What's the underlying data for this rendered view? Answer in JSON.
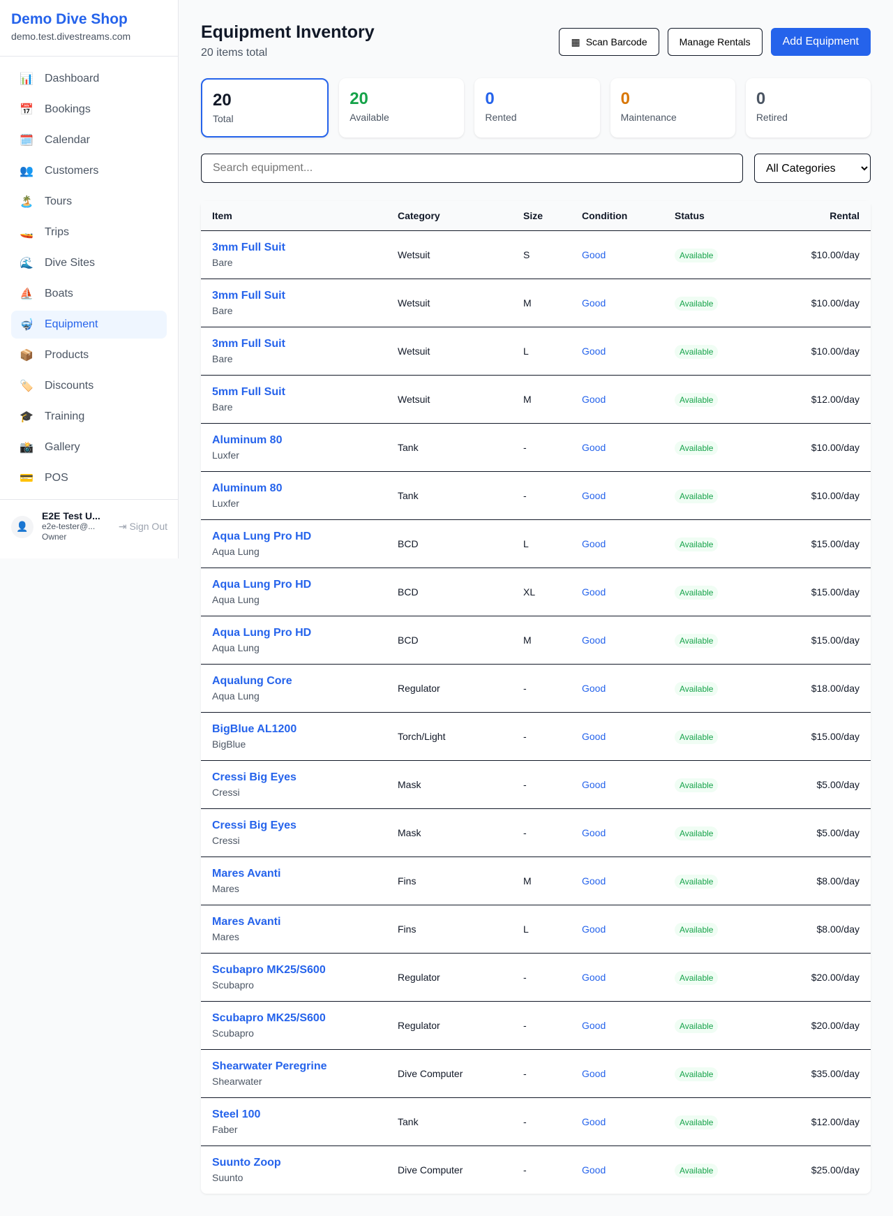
{
  "sidebar": {
    "shop_name": "Demo Dive Shop",
    "domain": "demo.test.divestreams.com",
    "items": [
      {
        "icon": "📊",
        "label": "Dashboard"
      },
      {
        "icon": "📅",
        "label": "Bookings"
      },
      {
        "icon": "🗓️",
        "label": "Calendar"
      },
      {
        "icon": "👥",
        "label": "Customers"
      },
      {
        "icon": "🏝️",
        "label": "Tours"
      },
      {
        "icon": "🚤",
        "label": "Trips"
      },
      {
        "icon": "🌊",
        "label": "Dive Sites"
      },
      {
        "icon": "⛵",
        "label": "Boats"
      },
      {
        "icon": "🤿",
        "label": "Equipment",
        "active": true
      },
      {
        "icon": "📦",
        "label": "Products"
      },
      {
        "icon": "🏷️",
        "label": "Discounts"
      },
      {
        "icon": "🎓",
        "label": "Training"
      },
      {
        "icon": "📸",
        "label": "Gallery"
      },
      {
        "icon": "💳",
        "label": "POS"
      }
    ],
    "user": {
      "name": "E2E Test U...",
      "email": "e2e-tester@...",
      "role": "Owner",
      "sign_out": "Sign Out"
    }
  },
  "header": {
    "title": "Equipment Inventory",
    "subtitle": "20 items total",
    "scan_barcode": "Scan Barcode",
    "manage_rentals": "Manage Rentals",
    "add_equipment": "Add Equipment"
  },
  "stats": [
    {
      "value": "20",
      "label": "Total",
      "color": "#111827"
    },
    {
      "value": "20",
      "label": "Available",
      "color": "#16a34a"
    },
    {
      "value": "0",
      "label": "Rented",
      "color": "#2563eb"
    },
    {
      "value": "0",
      "label": "Maintenance",
      "color": "#d97706"
    },
    {
      "value": "0",
      "label": "Retired",
      "color": "#4b5563"
    }
  ],
  "filters": {
    "search_placeholder": "Search equipment...",
    "category_selected": "All Categories"
  },
  "table": {
    "headers": [
      "Item",
      "Category",
      "Size",
      "Condition",
      "Status",
      "Rental"
    ],
    "rows": [
      [
        "3mm Full Suit",
        "Bare",
        "Wetsuit",
        "S",
        "Good",
        "Available",
        "$10.00/day"
      ],
      [
        "3mm Full Suit",
        "Bare",
        "Wetsuit",
        "M",
        "Good",
        "Available",
        "$10.00/day"
      ],
      [
        "3mm Full Suit",
        "Bare",
        "Wetsuit",
        "L",
        "Good",
        "Available",
        "$10.00/day"
      ],
      [
        "5mm Full Suit",
        "Bare",
        "Wetsuit",
        "M",
        "Good",
        "Available",
        "$12.00/day"
      ],
      [
        "Aluminum 80",
        "Luxfer",
        "Tank",
        "-",
        "Good",
        "Available",
        "$10.00/day"
      ],
      [
        "Aluminum 80",
        "Luxfer",
        "Tank",
        "-",
        "Good",
        "Available",
        "$10.00/day"
      ],
      [
        "Aqua Lung Pro HD",
        "Aqua Lung",
        "BCD",
        "L",
        "Good",
        "Available",
        "$15.00/day"
      ],
      [
        "Aqua Lung Pro HD",
        "Aqua Lung",
        "BCD",
        "XL",
        "Good",
        "Available",
        "$15.00/day"
      ],
      [
        "Aqua Lung Pro HD",
        "Aqua Lung",
        "BCD",
        "M",
        "Good",
        "Available",
        "$15.00/day"
      ],
      [
        "Aqualung Core",
        "Aqua Lung",
        "Regulator",
        "-",
        "Good",
        "Available",
        "$18.00/day"
      ],
      [
        "BigBlue AL1200",
        "BigBlue",
        "Torch/Light",
        "-",
        "Good",
        "Available",
        "$15.00/day"
      ],
      [
        "Cressi Big Eyes",
        "Cressi",
        "Mask",
        "-",
        "Good",
        "Available",
        "$5.00/day"
      ],
      [
        "Cressi Big Eyes",
        "Cressi",
        "Mask",
        "-",
        "Good",
        "Available",
        "$5.00/day"
      ],
      [
        "Mares Avanti",
        "Mares",
        "Fins",
        "M",
        "Good",
        "Available",
        "$8.00/day"
      ],
      [
        "Mares Avanti",
        "Mares",
        "Fins",
        "L",
        "Good",
        "Available",
        "$8.00/day"
      ],
      [
        "Scubapro MK25/S600",
        "Scubapro",
        "Regulator",
        "-",
        "Good",
        "Available",
        "$20.00/day"
      ],
      [
        "Scubapro MK25/S600",
        "Scubapro",
        "Regulator",
        "-",
        "Good",
        "Available",
        "$20.00/day"
      ],
      [
        "Shearwater Peregrine",
        "Shearwater",
        "Dive Computer",
        "-",
        "Good",
        "Available",
        "$35.00/day"
      ],
      [
        "Steel 100",
        "Faber",
        "Tank",
        "-",
        "Good",
        "Available",
        "$12.00/day"
      ],
      [
        "Suunto Zoop",
        "Suunto",
        "Dive Computer",
        "-",
        "Good",
        "Available",
        "$25.00/day"
      ]
    ]
  }
}
